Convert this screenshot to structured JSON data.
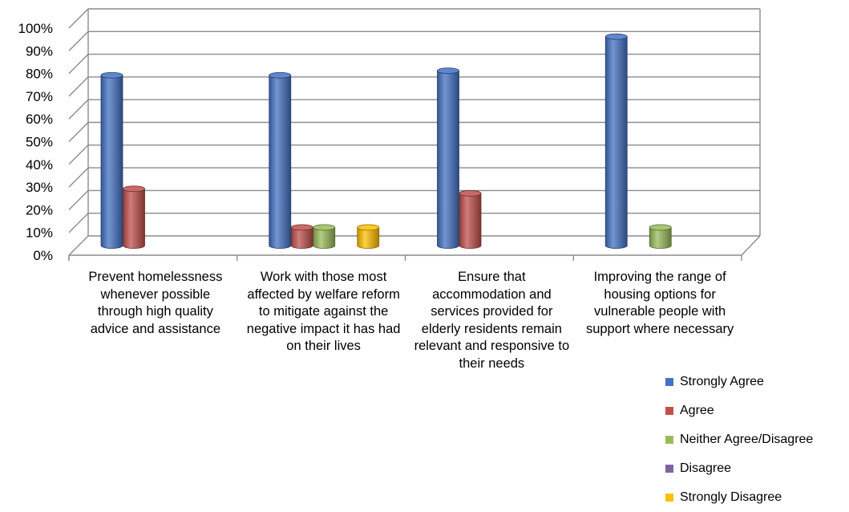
{
  "chart_data": {
    "type": "bar",
    "title": "",
    "xlabel": "",
    "ylabel": "",
    "ylim": [
      0,
      100
    ],
    "y_ticks": [
      "0%",
      "10%",
      "20%",
      "30%",
      "40%",
      "50%",
      "60%",
      "70%",
      "80%",
      "90%",
      "100%"
    ],
    "categories": [
      "Prevent homelessness whenever possible through high quality advice and assistance",
      "Work with those most affected by welfare reform to mitigate against the negative impact it has had on their lives",
      "Ensure that accommodation and services provided for elderly residents remain relevant and responsive to their needs",
      "Improving the range of housing options for vulnerable people with support where necessary"
    ],
    "series": [
      {
        "name": "Strongly Agree",
        "color": "#4472c4",
        "values": [
          75,
          75,
          77,
          92
        ]
      },
      {
        "name": "Agree",
        "color": "#c0504d",
        "values": [
          25,
          8,
          23,
          0
        ]
      },
      {
        "name": "Neither Agree/Disagree",
        "color": "#9bbb59",
        "values": [
          0,
          8,
          0,
          8
        ]
      },
      {
        "name": "Disagree",
        "color": "#8064a2",
        "values": [
          0,
          0,
          0,
          0
        ]
      },
      {
        "name": "Strongly Disagree",
        "color": "#ffc000",
        "values": [
          0,
          8,
          0,
          0
        ]
      }
    ],
    "grid": true,
    "legend_position": "bottom-right",
    "style": "3d-cylinder"
  }
}
